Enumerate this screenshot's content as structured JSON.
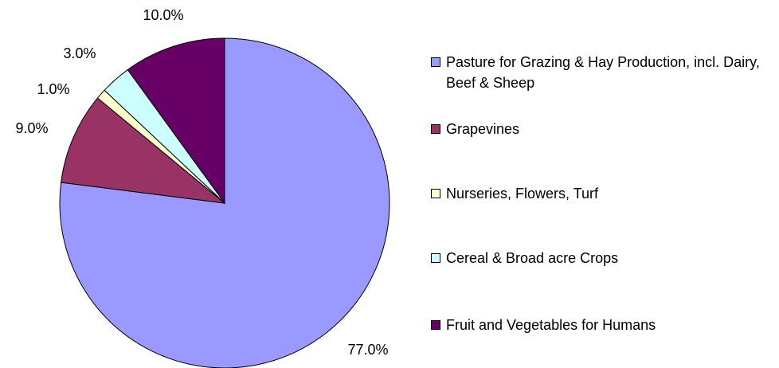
{
  "chart_data": {
    "type": "pie",
    "categories": [
      "Pasture for Grazing & Hay Production, incl. Dairy, Beef & Sheep",
      "Grapevines",
      "Nurseries, Flowers, Turf",
      "Cereal & Broad acre Crops",
      "Fruit and Vegetables for Humans"
    ],
    "values": [
      77,
      9,
      1,
      3,
      10
    ],
    "value_labels": [
      "77.0%",
      "9.0%",
      "1.0%",
      "3.0%",
      "10.0%"
    ],
    "colors": [
      "#9999ff",
      "#993366",
      "#ffffcc",
      "#ccffff",
      "#660066"
    ],
    "legend": "right"
  }
}
